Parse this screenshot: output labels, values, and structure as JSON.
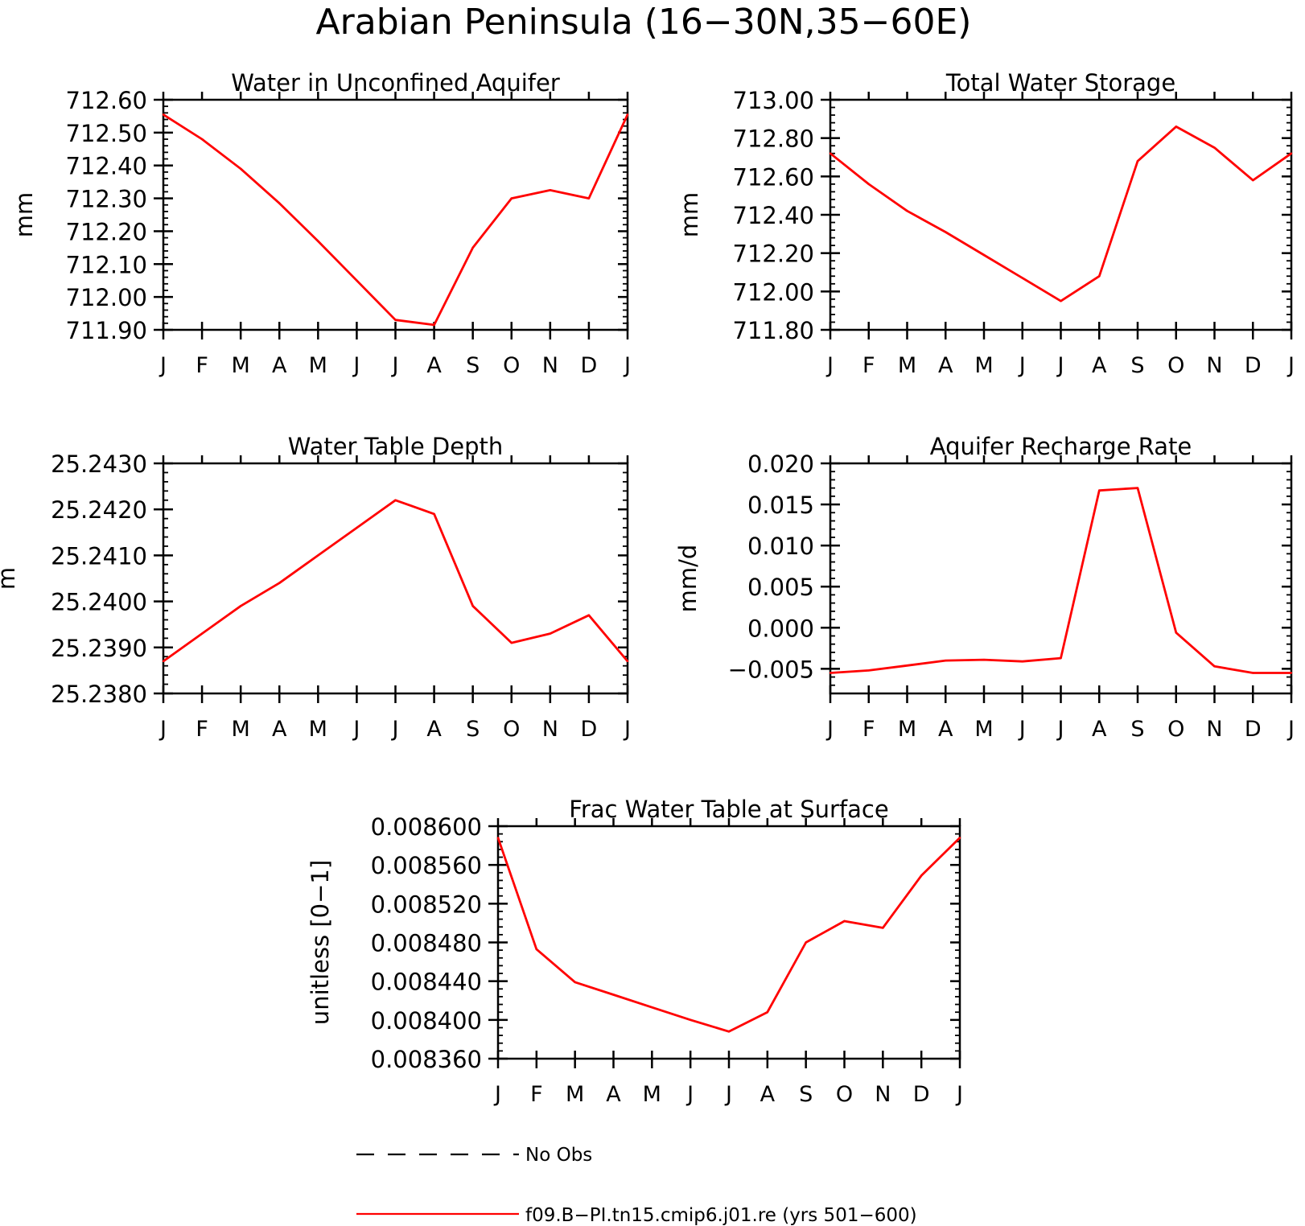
{
  "figure": {
    "title": "Arabian Peninsula (16−30N,35−60E)"
  },
  "legend": {
    "entries": [
      {
        "label": "No Obs",
        "style": "dashed",
        "color": "#000000"
      },
      {
        "label": "f09.B−PI.tn15.cmip6.j01.re (yrs 501−600)",
        "style": "solid",
        "color": "#ff0000"
      }
    ]
  },
  "chart_data": [
    {
      "type": "line",
      "title": "Water in Unconfined Aquifer",
      "ylabel": "mm",
      "xlabel": "",
      "x": [
        "J",
        "F",
        "M",
        "A",
        "M",
        "J",
        "J",
        "A",
        "S",
        "O",
        "N",
        "D",
        "J"
      ],
      "ylim": [
        711.9,
        712.6
      ],
      "yticks": [
        "712.60",
        "712.50",
        "712.40",
        "712.30",
        "712.20",
        "712.10",
        "712.00",
        "711.90"
      ],
      "series": [
        {
          "color": "#ff0000",
          "values": [
            712.555,
            712.48,
            712.39,
            712.285,
            712.17,
            712.05,
            711.93,
            711.915,
            712.15,
            712.3,
            712.325,
            712.3,
            712.555
          ]
        }
      ]
    },
    {
      "type": "line",
      "title": "Total Water Storage",
      "ylabel": "mm",
      "xlabel": "",
      "x": [
        "J",
        "F",
        "M",
        "A",
        "M",
        "J",
        "J",
        "A",
        "S",
        "O",
        "N",
        "D",
        "J"
      ],
      "ylim": [
        711.8,
        713.0
      ],
      "yticks": [
        "713.00",
        "712.80",
        "712.60",
        "712.40",
        "712.20",
        "712.00",
        "711.80"
      ],
      "series": [
        {
          "color": "#ff0000",
          "values": [
            712.72,
            712.56,
            712.42,
            712.31,
            712.19,
            712.07,
            711.95,
            712.08,
            712.68,
            712.86,
            712.75,
            712.58,
            712.72
          ]
        }
      ]
    },
    {
      "type": "line",
      "title": "Water Table Depth",
      "ylabel": "m",
      "xlabel": "",
      "x": [
        "J",
        "F",
        "M",
        "A",
        "M",
        "J",
        "J",
        "A",
        "S",
        "O",
        "N",
        "D",
        "J"
      ],
      "ylim": [
        25.238,
        25.243
      ],
      "yticks": [
        "25.2430",
        "25.2420",
        "25.2410",
        "25.2400",
        "25.2390",
        "25.2380"
      ],
      "series": [
        {
          "color": "#ff0000",
          "values": [
            25.2387,
            25.2393,
            25.2399,
            25.2404,
            25.241,
            25.2416,
            25.2422,
            25.2419,
            25.2399,
            25.2391,
            25.2393,
            25.2397,
            25.2387
          ]
        }
      ]
    },
    {
      "type": "line",
      "title": "Aquifer Recharge Rate",
      "ylabel": "mm/d",
      "xlabel": "",
      "x": [
        "J",
        "F",
        "M",
        "A",
        "M",
        "J",
        "J",
        "A",
        "S",
        "O",
        "N",
        "D",
        "J"
      ],
      "ylim": [
        -0.008,
        0.02
      ],
      "yticks": [
        "0.020",
        "0.015",
        "0.010",
        "0.005",
        "0.000",
        "−0.005"
      ],
      "ytick_values": [
        0.02,
        0.015,
        0.01,
        0.005,
        0.0,
        -0.005
      ],
      "series": [
        {
          "color": "#ff0000",
          "values": [
            -0.0055,
            -0.0052,
            -0.0046,
            -0.004,
            -0.0039,
            -0.0041,
            -0.0037,
            0.0167,
            0.017,
            -0.0006,
            -0.0047,
            -0.0055,
            -0.0055
          ]
        }
      ]
    },
    {
      "type": "line",
      "title": "Frac Water Table at Surface",
      "ylabel": "unitless [0−1]",
      "xlabel": "",
      "x": [
        "J",
        "F",
        "M",
        "A",
        "M",
        "J",
        "J",
        "A",
        "S",
        "O",
        "N",
        "D",
        "J"
      ],
      "ylim": [
        0.00836,
        0.0086
      ],
      "yticks": [
        "0.008600",
        "0.008560",
        "0.008520",
        "0.008480",
        "0.008440",
        "0.008400",
        "0.008360"
      ],
      "series": [
        {
          "color": "#ff0000",
          "values": [
            0.008588,
            0.008473,
            0.008439,
            0.008426,
            0.008413,
            0.0084,
            0.008388,
            0.008408,
            0.00848,
            0.008502,
            0.008495,
            0.008549,
            0.008588
          ]
        }
      ]
    }
  ]
}
